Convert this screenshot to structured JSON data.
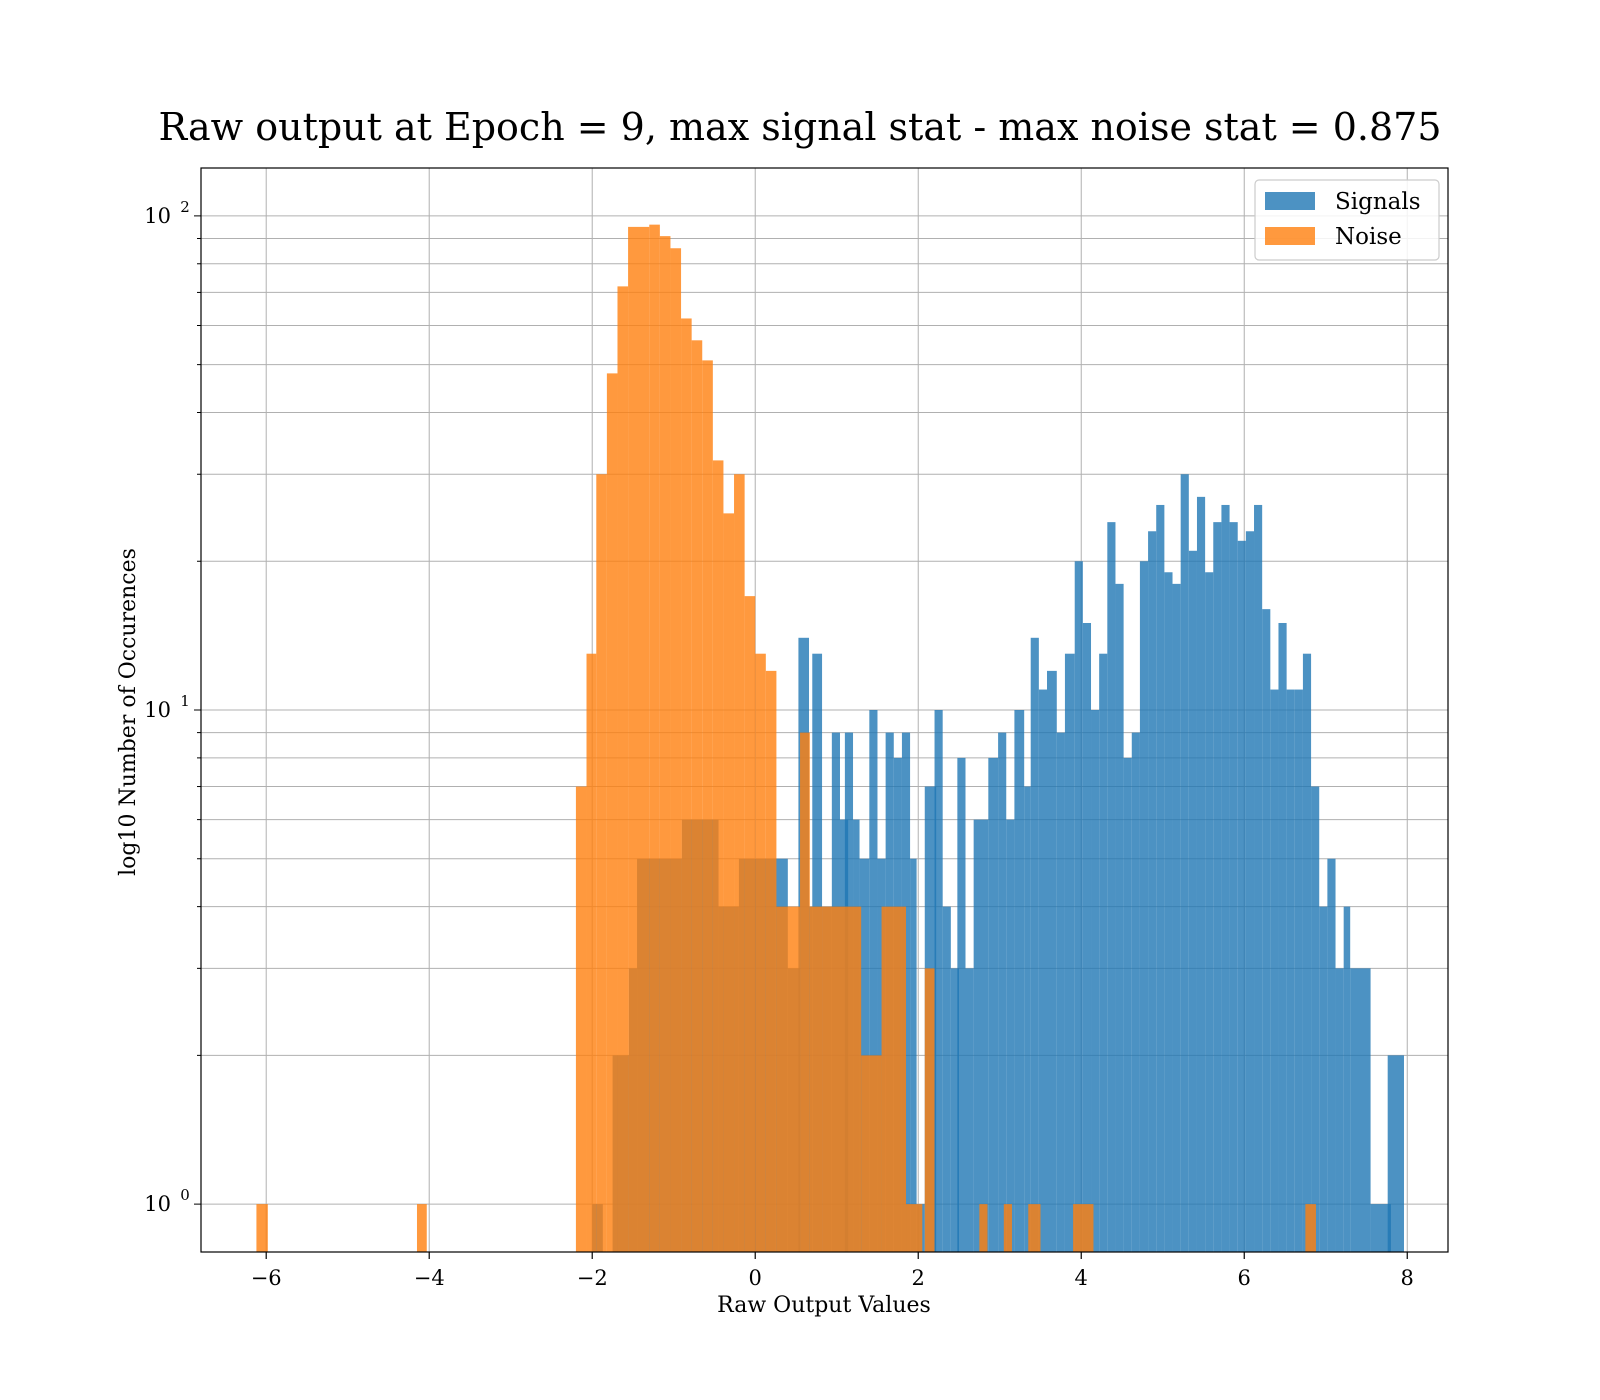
{
  "chart_data": {
    "type": "bar",
    "title": "Raw output at Epoch = 9, max signal stat - max noise stat = 0.875",
    "xlabel": "Raw Output Values",
    "ylabel": "log10 Number of Occurences",
    "yscale": "log",
    "xlim": [
      -6.8,
      8.5
    ],
    "ylim": [
      0.8,
      125
    ],
    "xticks": [
      -6,
      -4,
      -2,
      0,
      2,
      4,
      6,
      8
    ],
    "xtick_labels": [
      "−6",
      "−4",
      "−2",
      "0",
      "2",
      "4",
      "6",
      "8"
    ],
    "yticks": [
      {
        "value": 1,
        "base": "10",
        "exp": "0"
      },
      {
        "value": 10,
        "base": "10",
        "exp": "1"
      },
      {
        "value": 100,
        "base": "10",
        "exp": "2"
      }
    ],
    "grid": true,
    "legend_position": "upper right",
    "series": [
      {
        "name": "Signals",
        "color": "#1f77b4",
        "opacity": 0.8,
        "bins": [
          [
            -2.0,
            -1.87,
            1
          ],
          [
            -1.75,
            -1.55,
            2
          ],
          [
            -1.55,
            -1.45,
            3
          ],
          [
            -1.45,
            -0.9,
            5
          ],
          [
            -0.9,
            -0.45,
            6
          ],
          [
            -0.45,
            -0.2,
            4
          ],
          [
            -0.2,
            0.25,
            5
          ],
          [
            0.25,
            0.4,
            5
          ],
          [
            0.4,
            0.55,
            3
          ],
          [
            0.53,
            0.66,
            14
          ],
          [
            0.66,
            0.7,
            4
          ],
          [
            0.7,
            0.82,
            13
          ],
          [
            0.82,
            0.94,
            4
          ],
          [
            0.94,
            1.04,
            9
          ],
          [
            1.04,
            1.14,
            6
          ],
          [
            1.1,
            1.2,
            9
          ],
          [
            1.2,
            1.28,
            6
          ],
          [
            1.28,
            1.4,
            5
          ],
          [
            1.4,
            1.5,
            10
          ],
          [
            1.5,
            1.6,
            5
          ],
          [
            1.6,
            1.7,
            9
          ],
          [
            1.7,
            1.8,
            8
          ],
          [
            1.8,
            1.9,
            9
          ],
          [
            1.9,
            1.98,
            5
          ],
          [
            1.98,
            2.08,
            1
          ],
          [
            2.08,
            2.22,
            7
          ],
          [
            2.2,
            2.3,
            10
          ],
          [
            2.3,
            2.4,
            4
          ],
          [
            2.4,
            2.5,
            3
          ],
          [
            2.48,
            2.58,
            8
          ],
          [
            2.58,
            2.68,
            3
          ],
          [
            2.68,
            2.86,
            6
          ],
          [
            2.86,
            2.98,
            8
          ],
          [
            2.98,
            3.08,
            9
          ],
          [
            3.08,
            3.18,
            6
          ],
          [
            3.18,
            3.3,
            10
          ],
          [
            3.3,
            3.38,
            7
          ],
          [
            3.38,
            3.48,
            14
          ],
          [
            3.48,
            3.58,
            11
          ],
          [
            3.58,
            3.7,
            12
          ],
          [
            3.7,
            3.8,
            9
          ],
          [
            3.8,
            3.92,
            13
          ],
          [
            3.92,
            4.02,
            20
          ],
          [
            4.02,
            4.12,
            15
          ],
          [
            4.12,
            4.22,
            10
          ],
          [
            4.22,
            4.32,
            13
          ],
          [
            4.32,
            4.42,
            24
          ],
          [
            4.42,
            4.52,
            18
          ],
          [
            4.52,
            4.62,
            8
          ],
          [
            4.62,
            4.72,
            9
          ],
          [
            4.72,
            4.82,
            20
          ],
          [
            4.82,
            4.92,
            23
          ],
          [
            4.92,
            5.02,
            26
          ],
          [
            5.02,
            5.12,
            19
          ],
          [
            5.12,
            5.22,
            18
          ],
          [
            5.22,
            5.32,
            30
          ],
          [
            5.32,
            5.42,
            21
          ],
          [
            5.42,
            5.52,
            27
          ],
          [
            5.52,
            5.62,
            19
          ],
          [
            5.62,
            5.72,
            24
          ],
          [
            5.72,
            5.82,
            26
          ],
          [
            5.82,
            5.92,
            24
          ],
          [
            5.92,
            6.02,
            22
          ],
          [
            6.02,
            6.12,
            23
          ],
          [
            6.12,
            6.22,
            26
          ],
          [
            6.22,
            6.32,
            16
          ],
          [
            6.32,
            6.42,
            11
          ],
          [
            6.42,
            6.52,
            15
          ],
          [
            6.52,
            6.62,
            11
          ],
          [
            6.62,
            6.72,
            11
          ],
          [
            6.72,
            6.82,
            13
          ],
          [
            6.82,
            6.92,
            7
          ],
          [
            6.92,
            7.02,
            4
          ],
          [
            7.02,
            7.12,
            5
          ],
          [
            7.12,
            7.22,
            3
          ],
          [
            7.22,
            7.3,
            4
          ],
          [
            7.3,
            7.55,
            3
          ],
          [
            7.55,
            7.8,
            1
          ],
          [
            7.76,
            7.96,
            2
          ]
        ]
      },
      {
        "name": "Noise",
        "color": "#ff7f0e",
        "opacity": 0.8,
        "bins": [
          [
            -6.12,
            -5.98,
            1
          ],
          [
            -4.15,
            -4.03,
            1
          ],
          [
            -2.2,
            -2.07,
            7
          ],
          [
            -2.07,
            -1.95,
            13
          ],
          [
            -1.95,
            -1.82,
            30
          ],
          [
            -1.82,
            -1.69,
            48
          ],
          [
            -1.69,
            -1.56,
            72
          ],
          [
            -1.56,
            -1.3,
            95
          ],
          [
            -1.3,
            -1.17,
            96
          ],
          [
            -1.17,
            -1.04,
            91
          ],
          [
            -1.04,
            -0.91,
            86
          ],
          [
            -0.91,
            -0.78,
            62
          ],
          [
            -0.78,
            -0.65,
            56
          ],
          [
            -0.65,
            -0.52,
            51
          ],
          [
            -0.52,
            -0.39,
            32
          ],
          [
            -0.39,
            -0.26,
            25
          ],
          [
            -0.26,
            -0.13,
            30
          ],
          [
            -0.13,
            0.0,
            17
          ],
          [
            0.0,
            0.13,
            13
          ],
          [
            0.13,
            0.26,
            12
          ],
          [
            0.26,
            0.55,
            4
          ],
          [
            0.55,
            0.67,
            9
          ],
          [
            0.67,
            0.82,
            4
          ],
          [
            0.82,
            1.3,
            4
          ],
          [
            1.3,
            1.55,
            2
          ],
          [
            1.55,
            1.85,
            4
          ],
          [
            1.85,
            2.05,
            1
          ],
          [
            2.08,
            2.2,
            3
          ],
          [
            2.75,
            2.85,
            1
          ],
          [
            3.05,
            3.15,
            1
          ],
          [
            3.35,
            3.5,
            1
          ],
          [
            3.9,
            4.15,
            1
          ],
          [
            6.75,
            6.88,
            1
          ]
        ]
      }
    ]
  }
}
